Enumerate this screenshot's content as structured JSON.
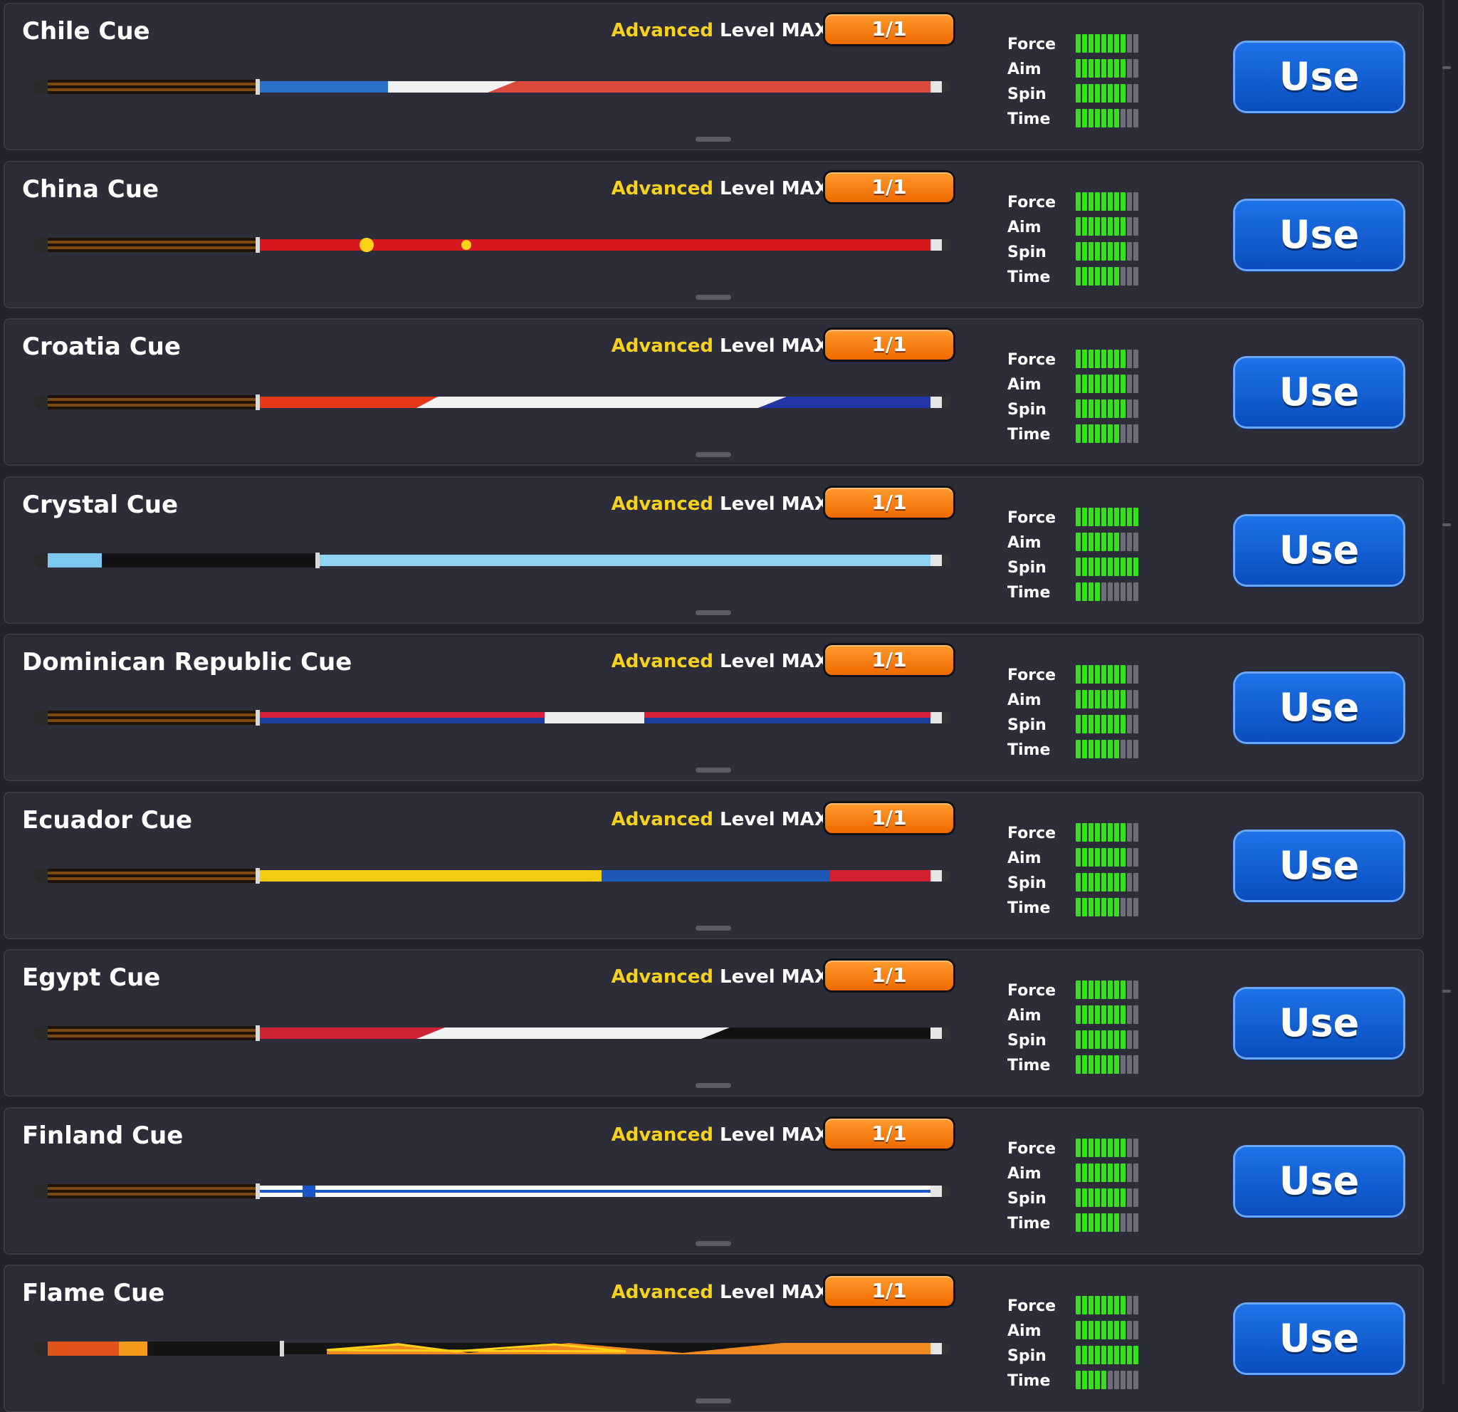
{
  "use_label": "Use",
  "stat_labels": [
    "Force",
    "Aim",
    "Spin",
    "Time"
  ],
  "cues": [
    {
      "name": "Chile Cue",
      "tier": "Advanced",
      "level": "Level MAX",
      "count": "1/1",
      "stats": {
        "force": 8,
        "aim": 8,
        "spin": 8,
        "time": 7
      },
      "colors": {
        "butt": "#7a4a12",
        "shaft": "#d94a3c",
        "accent": "#2b6fc9"
      }
    },
    {
      "name": "China Cue",
      "tier": "Advanced",
      "level": "Level MAX",
      "count": "1/1",
      "stats": {
        "force": 8,
        "aim": 8,
        "spin": 8,
        "time": 7
      },
      "colors": {
        "butt": "#7a4a12",
        "shaft": "#d4181c",
        "accent": "#ffd21a"
      }
    },
    {
      "name": "Croatia Cue",
      "tier": "Advanced",
      "level": "Level MAX",
      "count": "1/1",
      "stats": {
        "force": 8,
        "aim": 8,
        "spin": 8,
        "time": 7
      },
      "colors": {
        "butt": "#7a4a12",
        "shaft": "#e8361b",
        "accent": "#2236a8"
      }
    },
    {
      "name": "Crystal Cue",
      "tier": "Advanced",
      "level": "Level MAX",
      "count": "1/1",
      "stats": {
        "force": 10,
        "aim": 7,
        "spin": 10,
        "time": 4
      },
      "colors": {
        "butt": "#111114",
        "shaft": "#8fd3f2",
        "accent": "#7cc8ee"
      }
    },
    {
      "name": "Dominican Republic Cue",
      "tier": "Advanced",
      "level": "Level MAX",
      "count": "1/1",
      "stats": {
        "force": 8,
        "aim": 8,
        "spin": 8,
        "time": 7
      },
      "colors": {
        "butt": "#7a4a12",
        "shaft": "#d8203a",
        "accent": "#1c3f9c"
      }
    },
    {
      "name": "Ecuador Cue",
      "tier": "Advanced",
      "level": "Level MAX",
      "count": "1/1",
      "stats": {
        "force": 8,
        "aim": 8,
        "spin": 8,
        "time": 7
      },
      "colors": {
        "butt": "#7a4a12",
        "shaft": "#f3cc12",
        "accent": "#1b58b8"
      }
    },
    {
      "name": "Egypt Cue",
      "tier": "Advanced",
      "level": "Level MAX",
      "count": "1/1",
      "stats": {
        "force": 8,
        "aim": 8,
        "spin": 8,
        "time": 7
      },
      "colors": {
        "butt": "#7a4a12",
        "shaft": "#cc2233",
        "accent": "#111111"
      }
    },
    {
      "name": "Finland Cue",
      "tier": "Advanced",
      "level": "Level MAX",
      "count": "1/1",
      "stats": {
        "force": 8,
        "aim": 8,
        "spin": 8,
        "time": 7
      },
      "colors": {
        "butt": "#7a4a12",
        "shaft": "#ffffff",
        "accent": "#1a56c8"
      }
    },
    {
      "name": "Flame Cue",
      "tier": "Advanced",
      "level": "Level MAX",
      "count": "1/1",
      "stats": {
        "force": 8,
        "aim": 8,
        "spin": 10,
        "time": 5
      },
      "colors": {
        "butt": "#e0531a",
        "shaft": "#f08a20",
        "accent": "#ffd21a"
      }
    }
  ]
}
